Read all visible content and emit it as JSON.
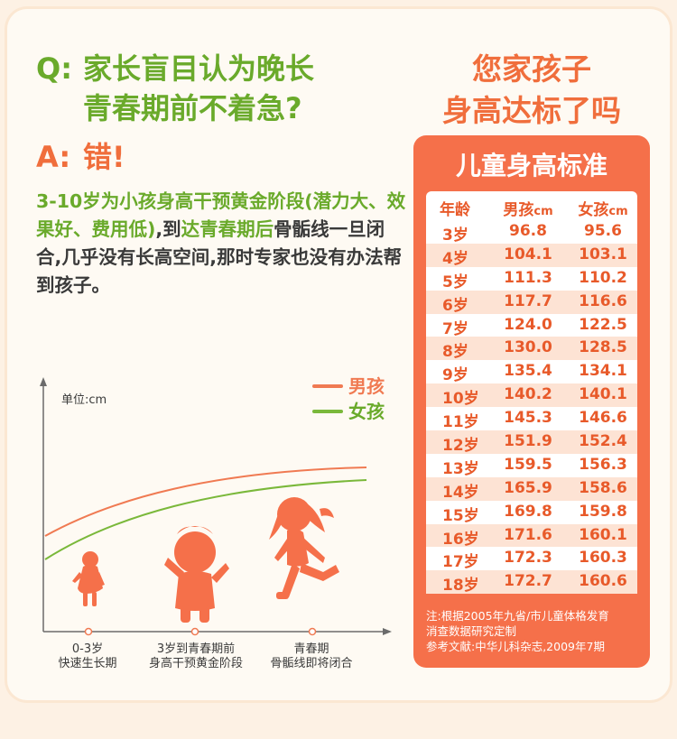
{
  "question": {
    "label": "Q:",
    "line1": "家长盲目认为晚长",
    "line2": "青春期前不着急?"
  },
  "answer": {
    "label": "A:",
    "text": "错!"
  },
  "body": {
    "part1": "3-10岁为小孩身高干预黄金阶段(潜力大、效果好、费用低)",
    "part2": ",到",
    "part3": "达青春期后骨骺线一旦闭合,几乎没有长高空间,那时专家也没有办法帮到孩子。"
  },
  "headline": {
    "line1": "您家孩子",
    "line2": "身高达标了吗"
  },
  "table": {
    "title": "儿童身高标准",
    "headers": {
      "age": "年龄",
      "boy": "男孩",
      "girl": "女孩",
      "unit": "cm"
    },
    "rows": [
      {
        "age": "3岁",
        "boy": "96.8",
        "girl": "95.6"
      },
      {
        "age": "4岁",
        "boy": "104.1",
        "girl": "103.1"
      },
      {
        "age": "5岁",
        "boy": "111.3",
        "girl": "110.2"
      },
      {
        "age": "6岁",
        "boy": "117.7",
        "girl": "116.6"
      },
      {
        "age": "7岁",
        "boy": "124.0",
        "girl": "122.5"
      },
      {
        "age": "8岁",
        "boy": "130.0",
        "girl": "128.5"
      },
      {
        "age": "9岁",
        "boy": "135.4",
        "girl": "134.1"
      },
      {
        "age": "10岁",
        "boy": "140.2",
        "girl": "140.1"
      },
      {
        "age": "11岁",
        "boy": "145.3",
        "girl": "146.6"
      },
      {
        "age": "12岁",
        "boy": "151.9",
        "girl": "152.4"
      },
      {
        "age": "13岁",
        "boy": "159.5",
        "girl": "156.3"
      },
      {
        "age": "14岁",
        "boy": "165.9",
        "girl": "158.6"
      },
      {
        "age": "15岁",
        "boy": "169.8",
        "girl": "159.8"
      },
      {
        "age": "16岁",
        "boy": "171.6",
        "girl": "160.1"
      },
      {
        "age": "17岁",
        "boy": "172.3",
        "girl": "160.3"
      },
      {
        "age": "18岁",
        "boy": "172.7",
        "girl": "160.6"
      }
    ],
    "note_line1": "注:根据2005年九省/市儿童体格发育",
    "note_line2": "消查数据研究定制",
    "note_line3": "参考文献:中华儿科杂志,2009年7期"
  },
  "chart": {
    "unit_label": "单位:cm",
    "legend": [
      {
        "name": "男孩",
        "color": "#f07a52"
      },
      {
        "name": "女孩",
        "color": "#7ab83a"
      }
    ],
    "stages": [
      {
        "line1": "0-3岁",
        "line2": "快速生长期"
      },
      {
        "line1": "3岁到青春期前",
        "line2": "身高干预黄金阶段"
      },
      {
        "line1": "青春期",
        "line2": "骨骺线即将闭合"
      }
    ]
  },
  "colors": {
    "accent_orange": "#f06e3c",
    "accent_green": "#6aaa2b",
    "silhouette": "#f5704a"
  }
}
